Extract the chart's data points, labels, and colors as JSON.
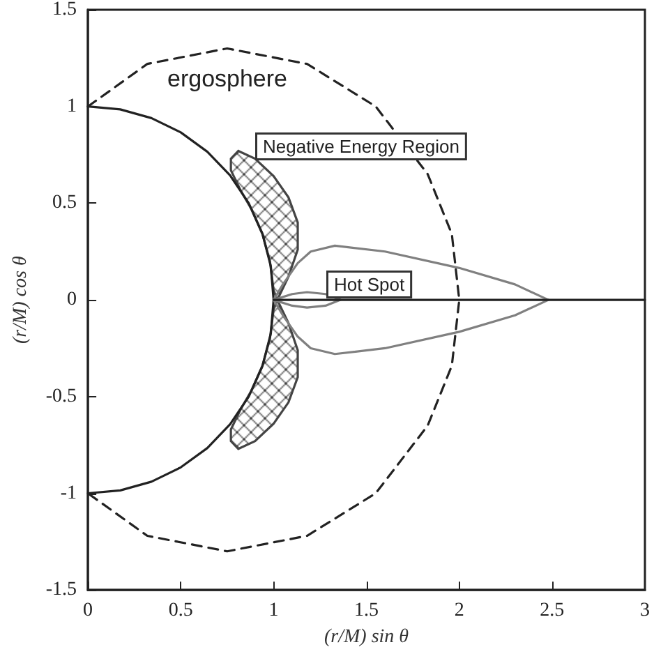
{
  "chart_data": {
    "type": "line",
    "xlabel": "(r/M) sin θ",
    "ylabel": "(r/M) cos θ",
    "xlim": [
      0,
      3
    ],
    "ylim": [
      -1.5,
      1.5
    ],
    "xticks": [
      0,
      0.5,
      1,
      1.5,
      2,
      2.5,
      3
    ],
    "yticks": [
      -1.5,
      -1,
      -0.5,
      0,
      0.5,
      1,
      1.5
    ],
    "grid": false,
    "marker": "none",
    "series": [
      {
        "color": "#222222",
        "line_style": "solid",
        "x": [
          0,
          0.174,
          0.342,
          0.5,
          0.643,
          0.766,
          0.866,
          0.94,
          0.985,
          1,
          0.985,
          0.94,
          0.866,
          0.766,
          0.643,
          0.5,
          0.342,
          0.174,
          0
        ],
        "values": [
          1,
          0.985,
          0.94,
          0.866,
          0.766,
          0.643,
          0.5,
          0.342,
          0.174,
          0,
          -0.174,
          -0.342,
          -0.5,
          -0.643,
          -0.766,
          -0.866,
          -0.94,
          -0.985,
          -1
        ]
      },
      {
        "color": "#222222",
        "line_style": "dashed",
        "x": [
          0,
          0.32,
          0.75,
          1.18,
          1.55,
          1.83,
          1.96,
          2,
          1.96,
          1.83,
          1.55,
          1.18,
          0.75,
          0.32,
          0
        ],
        "values": [
          1,
          1.22,
          1.3,
          1.22,
          1,
          0.65,
          0.34,
          0,
          -0.34,
          -0.65,
          -1,
          -1.22,
          -1.3,
          -1.22,
          -1
        ]
      },
      {
        "type": "area",
        "color": "#444444",
        "x": [
          1.02,
          1.08,
          1.13,
          1.13,
          1.08,
          1,
          0.9,
          0.81,
          0.77,
          0.77,
          0.82,
          0.88,
          0.94,
          0.98,
          1,
          1.02
        ],
        "values": [
          0,
          0.12,
          0.26,
          0.4,
          0.53,
          0.64,
          0.73,
          0.77,
          0.73,
          0.67,
          0.57,
          0.47,
          0.34,
          0.2,
          0.05,
          0
        ]
      },
      {
        "type": "area",
        "color": "#444444",
        "x": [
          1.02,
          1.08,
          1.13,
          1.13,
          1.08,
          1,
          0.9,
          0.81,
          0.77,
          0.77,
          0.82,
          0.88,
          0.94,
          0.98,
          1,
          1.02
        ],
        "values": [
          0,
          -0.12,
          -0.26,
          -0.4,
          -0.53,
          -0.64,
          -0.73,
          -0.77,
          -0.73,
          -0.67,
          -0.57,
          -0.47,
          -0.34,
          -0.2,
          -0.05,
          0
        ]
      },
      {
        "color": "#808080",
        "line_style": "solid",
        "x": [
          1,
          1.05,
          1.13,
          1.2,
          1.33,
          1.6,
          2,
          2.3,
          2.48,
          null,
          1,
          1.05,
          1.13,
          1.2,
          1.33,
          1.6,
          2,
          2.3,
          2.48
        ],
        "values": [
          0,
          0.08,
          0.19,
          0.25,
          0.28,
          0.25,
          0.165,
          0.08,
          0,
          null,
          0,
          -0.08,
          -0.19,
          -0.25,
          -0.28,
          -0.25,
          -0.165,
          -0.08,
          0
        ]
      },
      {
        "color": "#808080",
        "line_style": "solid",
        "x": [
          1,
          1.1,
          1.18,
          1.28,
          1.36,
          null,
          1,
          1.1,
          1.18,
          1.28,
          1.36
        ],
        "values": [
          0,
          0.03,
          0.04,
          0.03,
          0,
          null,
          0,
          -0.03,
          -0.04,
          -0.03,
          0
        ]
      },
      {
        "color": "#222222",
        "line_style": "solid",
        "x": [
          1,
          3
        ],
        "values": [
          0,
          0
        ]
      }
    ],
    "annotations": [
      "ergosphere",
      "Negative Energy Region",
      "Hot Spot"
    ]
  }
}
